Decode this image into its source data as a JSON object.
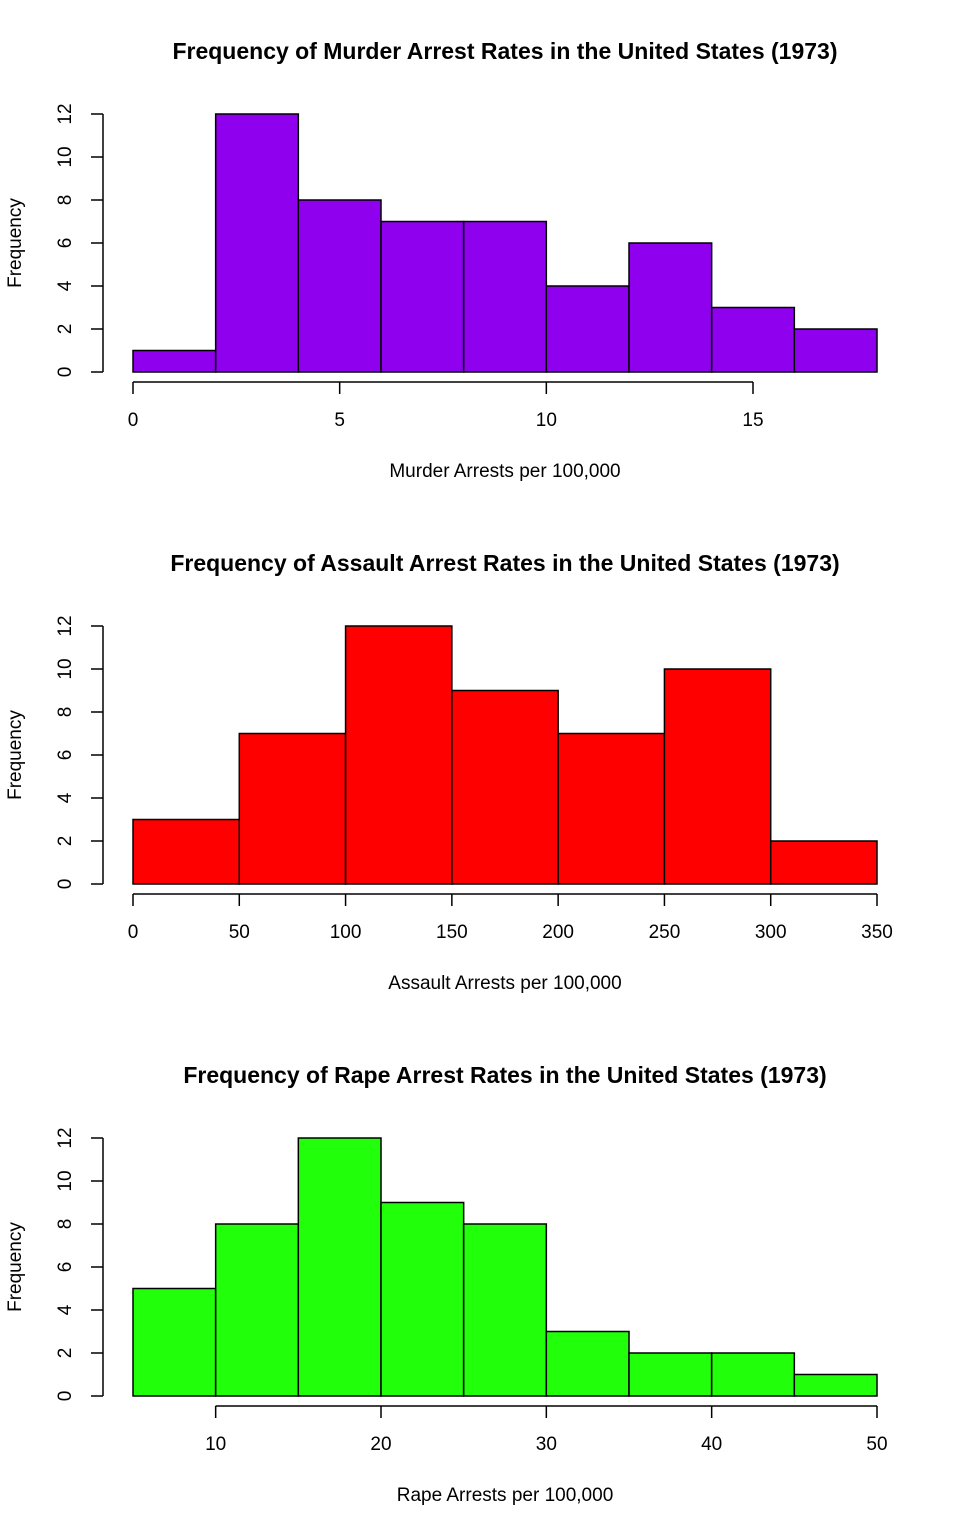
{
  "chart_data": [
    {
      "type": "histogram",
      "title": "Frequency of Murder Arrest Rates in the United States (1973)",
      "xlabel": "Murder Arrests per 100,000",
      "ylabel": "Frequency",
      "bins": [
        0,
        2,
        4,
        6,
        8,
        10,
        12,
        14,
        16,
        18
      ],
      "counts": [
        1,
        12,
        8,
        7,
        7,
        4,
        6,
        3,
        2
      ],
      "color": "#8f00ee",
      "xlim": [
        0,
        18
      ],
      "xticks": [
        0,
        5,
        10,
        15
      ],
      "ylim": [
        0,
        12
      ],
      "yticks": [
        0,
        2,
        4,
        6,
        8,
        10,
        12
      ]
    },
    {
      "type": "histogram",
      "title": "Frequency of Assault Arrest Rates in the United States (1973)",
      "xlabel": "Assault Arrests per 100,000",
      "ylabel": "Frequency",
      "bins": [
        0,
        50,
        100,
        150,
        200,
        250,
        300,
        350
      ],
      "counts": [
        3,
        7,
        12,
        9,
        7,
        10,
        2
      ],
      "color": "#ff0000",
      "xlim": [
        0,
        350
      ],
      "xticks": [
        0,
        50,
        100,
        150,
        200,
        250,
        300,
        350
      ],
      "ylim": [
        0,
        12
      ],
      "yticks": [
        0,
        2,
        4,
        6,
        8,
        10,
        12
      ]
    },
    {
      "type": "histogram",
      "title": "Frequency of Rape Arrest Rates in the United States (1973)",
      "xlabel": "Rape Arrests per 100,000",
      "ylabel": "Frequency",
      "bins": [
        5,
        10,
        15,
        20,
        25,
        30,
        35,
        40,
        45,
        50
      ],
      "counts": [
        5,
        8,
        12,
        9,
        8,
        3,
        2,
        2,
        1
      ],
      "color": "#22ff0b",
      "xlim": [
        5,
        50
      ],
      "xticks": [
        10,
        20,
        30,
        40,
        50
      ],
      "ylim": [
        0,
        12
      ],
      "yticks": [
        0,
        2,
        4,
        6,
        8,
        10,
        12
      ]
    }
  ]
}
